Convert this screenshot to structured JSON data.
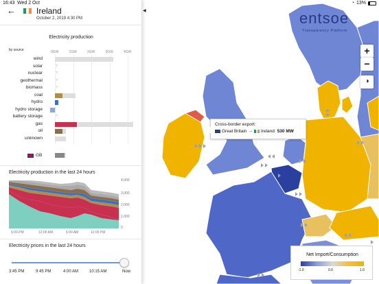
{
  "status_bar": {
    "time": "16:43",
    "date": "Wed 2 Oct",
    "battery": "13%"
  },
  "header": {
    "country": "Ireland",
    "date": "October 2, 2019 4:30 PM"
  },
  "production": {
    "title": "Electricity production",
    "by_source_label": "by source",
    "axis_ticks": [
      "0GW",
      "1GW",
      "2GW",
      "3GW",
      "4GW"
    ],
    "rows": [
      {
        "label": "wind",
        "capacity_gw": 3.2,
        "value_gw": 0.0,
        "color": "#7ecfc0"
      },
      {
        "label": "solar",
        "capacity_gw": 0,
        "value_gw": 0,
        "color": "#f2d55a",
        "unknown": true
      },
      {
        "label": "nuclear",
        "capacity_gw": 0,
        "value_gw": 0,
        "color": "#a37fd1",
        "unknown": true
      },
      {
        "label": "geothermal",
        "capacity_gw": 0,
        "value_gw": 0,
        "color": "#c87860",
        "unknown": true
      },
      {
        "label": "biomass",
        "capacity_gw": 0,
        "value_gw": 0,
        "color": "#7a9e3a",
        "unknown": true
      },
      {
        "label": "coal",
        "capacity_gw": 1.15,
        "value_gw": 0.4,
        "color": "#a89050"
      },
      {
        "label": "hydro",
        "capacity_gw": 0.2,
        "value_gw": 0.17,
        "color": "#3d6fc0"
      },
      {
        "label": "hydro storage",
        "capacity_gw": 0.3,
        "value_gw": -0.25,
        "color": "#88a8e0"
      },
      {
        "label": "battery storage",
        "capacity_gw": 0,
        "value_gw": 0,
        "color": "#b0b0b0",
        "unknown": true
      },
      {
        "label": "gas",
        "capacity_gw": 4.3,
        "value_gw": 1.2,
        "color": "#c8304f"
      },
      {
        "label": "oil",
        "capacity_gw": 0.6,
        "value_gw": 0.4,
        "color": "#8a6e4e"
      },
      {
        "label": "unknown",
        "capacity_gw": 0.6,
        "value_gw": 0,
        "color": "#aaaaaa"
      }
    ],
    "exchange": {
      "label": "GB",
      "value_gw": 0.53
    }
  },
  "production_24h": {
    "title": "Electricity production in the last 24 hours",
    "y_ticks": [
      "4,000",
      "3,000",
      "2,000",
      "1,000",
      "0"
    ],
    "x_ticks": [
      "6:00 PM",
      "12:00 AM",
      "6:00 AM",
      "12:00 PM"
    ]
  },
  "prices": {
    "title": "Electricity prices in the last 24 hours"
  },
  "slider": {
    "labels": [
      "3:45 PM",
      "9:45 PM",
      "4:00 AM",
      "10:15 AM",
      "Now"
    ]
  },
  "logo": {
    "name": "entsoe",
    "subtitle": "Transparency Platform"
  },
  "controls": {
    "zoom_in": "+",
    "zoom_out": "−"
  },
  "tooltip": {
    "title": "Cross-border export:",
    "from": "Great Britain",
    "arrow": "→",
    "to": "Ireland:",
    "value": "530 MW"
  },
  "legend": {
    "title": "Net Import/Consumption",
    "ticks": [
      "-1.0",
      "0.0",
      "1.0"
    ]
  },
  "colors": {
    "ireland": "#f0b400",
    "britain": "#5b7ad0",
    "ocean": "#ffffff",
    "dark_blue": "#2b3f9e",
    "mid_blue": "#6f86d4"
  }
}
